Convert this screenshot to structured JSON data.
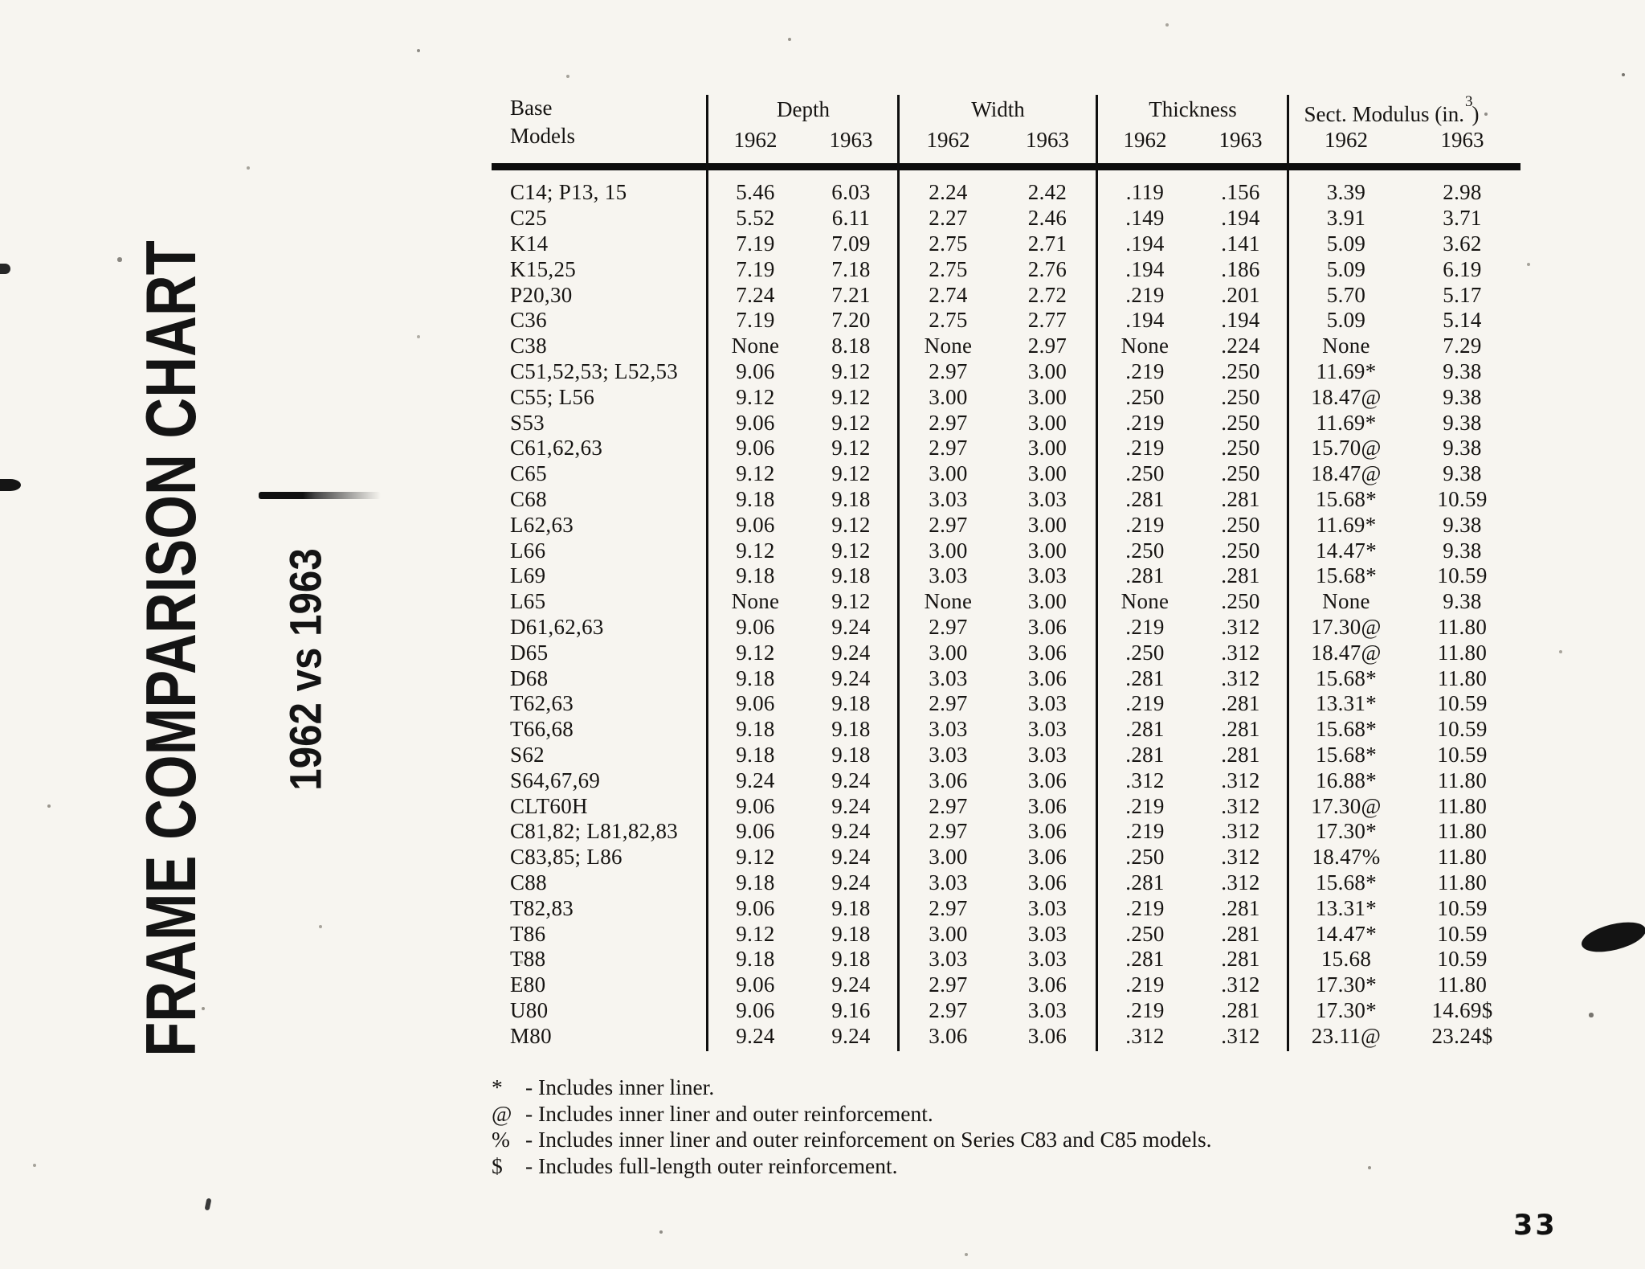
{
  "title": {
    "main": "FRAME COMPARISON CHART",
    "subtitle": "1962 vs 1963"
  },
  "page_number": "33",
  "table": {
    "base_header": [
      "Base",
      "Models"
    ],
    "year_headers": [
      "1962",
      "1963"
    ],
    "groups": [
      {
        "label": "Depth"
      },
      {
        "label": "Width"
      },
      {
        "label": "Thickness"
      },
      {
        "label": "Sect. Modulus (in.",
        "sup": "3",
        "suffix": ")"
      }
    ],
    "rows": [
      {
        "model": "C14; P13, 15",
        "values": [
          "5.46",
          "6.03",
          "2.24",
          "2.42",
          ".119",
          ".156",
          "3.39",
          "2.98"
        ]
      },
      {
        "model": "C25",
        "values": [
          "5.52",
          "6.11",
          "2.27",
          "2.46",
          ".149",
          ".194",
          "3.91",
          "3.71"
        ]
      },
      {
        "model": "K14",
        "values": [
          "7.19",
          "7.09",
          "2.75",
          "2.71",
          ".194",
          ".141",
          "5.09",
          "3.62"
        ]
      },
      {
        "model": "K15,25",
        "values": [
          "7.19",
          "7.18",
          "2.75",
          "2.76",
          ".194",
          ".186",
          "5.09",
          "6.19"
        ]
      },
      {
        "model": "P20,30",
        "values": [
          "7.24",
          "7.21",
          "2.74",
          "2.72",
          ".219",
          ".201",
          "5.70",
          "5.17"
        ]
      },
      {
        "model": "C36",
        "values": [
          "7.19",
          "7.20",
          "2.75",
          "2.77",
          ".194",
          ".194",
          "5.09",
          "5.14"
        ]
      },
      {
        "model": "C38",
        "values": [
          "None",
          "8.18",
          "None",
          "2.97",
          "None",
          ".224",
          "None",
          "7.29"
        ]
      },
      {
        "model": "C51,52,53; L52,53",
        "values": [
          "9.06",
          "9.12",
          "2.97",
          "3.00",
          ".219",
          ".250",
          "11.69*",
          "9.38"
        ]
      },
      {
        "model": "C55; L56",
        "values": [
          "9.12",
          "9.12",
          "3.00",
          "3.00",
          ".250",
          ".250",
          "18.47@",
          "9.38"
        ]
      },
      {
        "model": "S53",
        "values": [
          "9.06",
          "9.12",
          "2.97",
          "3.00",
          ".219",
          ".250",
          "11.69*",
          "9.38"
        ]
      },
      {
        "model": "C61,62,63",
        "values": [
          "9.06",
          "9.12",
          "2.97",
          "3.00",
          ".219",
          ".250",
          "15.70@",
          "9.38"
        ]
      },
      {
        "model": "C65",
        "values": [
          "9.12",
          "9.12",
          "3.00",
          "3.00",
          ".250",
          ".250",
          "18.47@",
          "9.38"
        ]
      },
      {
        "model": "C68",
        "values": [
          "9.18",
          "9.18",
          "3.03",
          "3.03",
          ".281",
          ".281",
          "15.68*",
          "10.59"
        ]
      },
      {
        "model": "L62,63",
        "values": [
          "9.06",
          "9.12",
          "2.97",
          "3.00",
          ".219",
          ".250",
          "11.69*",
          "9.38"
        ]
      },
      {
        "model": "L66",
        "values": [
          "9.12",
          "9.12",
          "3.00",
          "3.00",
          ".250",
          ".250",
          "14.47*",
          "9.38"
        ]
      },
      {
        "model": "L69",
        "values": [
          "9.18",
          "9.18",
          "3.03",
          "3.03",
          ".281",
          ".281",
          "15.68*",
          "10.59"
        ]
      },
      {
        "model": "L65",
        "values": [
          "None",
          "9.12",
          "None",
          "3.00",
          "None",
          ".250",
          "None",
          "9.38"
        ]
      },
      {
        "model": "D61,62,63",
        "values": [
          "9.06",
          "9.24",
          "2.97",
          "3.06",
          ".219",
          ".312",
          "17.30@",
          "11.80"
        ]
      },
      {
        "model": "D65",
        "values": [
          "9.12",
          "9.24",
          "3.00",
          "3.06",
          ".250",
          ".312",
          "18.47@",
          "11.80"
        ]
      },
      {
        "model": "D68",
        "values": [
          "9.18",
          "9.24",
          "3.03",
          "3.06",
          ".281",
          ".312",
          "15.68*",
          "11.80"
        ]
      },
      {
        "model": "T62,63",
        "values": [
          "9.06",
          "9.18",
          "2.97",
          "3.03",
          ".219",
          ".281",
          "13.31*",
          "10.59"
        ]
      },
      {
        "model": "T66,68",
        "values": [
          "9.18",
          "9.18",
          "3.03",
          "3.03",
          ".281",
          ".281",
          "15.68*",
          "10.59"
        ]
      },
      {
        "model": "S62",
        "values": [
          "9.18",
          "9.18",
          "3.03",
          "3.03",
          ".281",
          ".281",
          "15.68*",
          "10.59"
        ]
      },
      {
        "model": "S64,67,69",
        "values": [
          "9.24",
          "9.24",
          "3.06",
          "3.06",
          ".312",
          ".312",
          "16.88*",
          "11.80"
        ]
      },
      {
        "model": "CLT60H",
        "values": [
          "9.06",
          "9.24",
          "2.97",
          "3.06",
          ".219",
          ".312",
          "17.30@",
          "11.80"
        ]
      },
      {
        "model": "C81,82; L81,82,83",
        "values": [
          "9.06",
          "9.24",
          "2.97",
          "3.06",
          ".219",
          ".312",
          "17.30*",
          "11.80"
        ]
      },
      {
        "model": "C83,85; L86",
        "values": [
          "9.12",
          "9.24",
          "3.00",
          "3.06",
          ".250",
          ".312",
          "18.47%",
          "11.80"
        ]
      },
      {
        "model": "C88",
        "values": [
          "9.18",
          "9.24",
          "3.03",
          "3.06",
          ".281",
          ".312",
          "15.68*",
          "11.80"
        ]
      },
      {
        "model": "T82,83",
        "values": [
          "9.06",
          "9.18",
          "2.97",
          "3.03",
          ".219",
          ".281",
          "13.31*",
          "10.59"
        ]
      },
      {
        "model": "T86",
        "values": [
          "9.12",
          "9.18",
          "3.00",
          "3.03",
          ".250",
          ".281",
          "14.47*",
          "10.59"
        ]
      },
      {
        "model": "T88",
        "values": [
          "9.18",
          "9.18",
          "3.03",
          "3.03",
          ".281",
          ".281",
          "15.68",
          "10.59"
        ]
      },
      {
        "model": "E80",
        "values": [
          "9.06",
          "9.24",
          "2.97",
          "3.06",
          ".219",
          ".312",
          "17.30*",
          "11.80"
        ]
      },
      {
        "model": "U80",
        "values": [
          "9.06",
          "9.16",
          "2.97",
          "3.03",
          ".219",
          ".281",
          "17.30*",
          "14.69$"
        ]
      },
      {
        "model": "M80",
        "values": [
          "9.24",
          "9.24",
          "3.06",
          "3.06",
          ".312",
          ".312",
          "23.11@",
          "23.24$"
        ]
      }
    ]
  },
  "footnotes": [
    {
      "symbol": "*",
      "text": "- Includes inner liner."
    },
    {
      "symbol": "@",
      "text": "- Includes inner liner and outer reinforcement."
    },
    {
      "symbol": "%",
      "text": "- Includes inner liner and outer reinforcement on Series C83 and C85 models."
    },
    {
      "symbol": "$",
      "text": "- Includes full-length outer reinforcement."
    }
  ]
}
